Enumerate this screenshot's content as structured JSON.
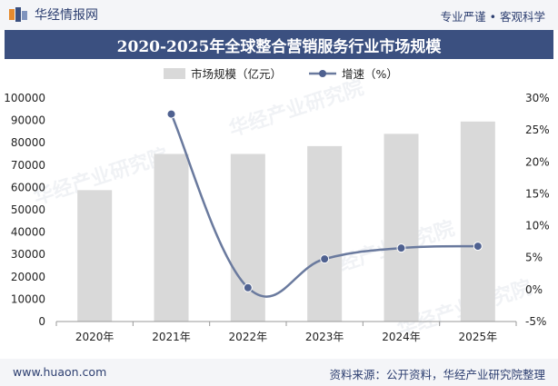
{
  "header": {
    "brand_name": "华经情报网",
    "slogan": "专业严谨 • 客观科学"
  },
  "title": "2020-2025年全球整合营销服务行业市场规模",
  "footer": {
    "website": "www.huaon.com",
    "source": "资料来源：公开资料，华经产业研究院整理"
  },
  "watermark": "华经产业研究院",
  "colors": {
    "bar": "#d9d9d9",
    "line": "#6a7a9e",
    "marker": "#4f6190",
    "title_bg": "#3b5080"
  },
  "chart_data": {
    "type": "bar+line",
    "categories": [
      "2020年",
      "2021年",
      "2022年",
      "2023年",
      "2024年",
      "2025年"
    ],
    "series": [
      {
        "name": "市场规模（亿元）",
        "type": "bar",
        "axis": "left",
        "values": [
          58800,
          75000,
          75000,
          78500,
          84000,
          89500
        ]
      },
      {
        "name": "增速（%）",
        "type": "line",
        "axis": "right",
        "values": [
          null,
          27.5,
          0.3,
          4.8,
          6.5,
          6.8
        ]
      }
    ],
    "y_left": {
      "min": 0,
      "max": 100000,
      "ticks": [
        "0",
        "10000",
        "20000",
        "30000",
        "40000",
        "50000",
        "60000",
        "70000",
        "80000",
        "90000",
        "100000"
      ]
    },
    "y_right": {
      "min": -5,
      "max": 30,
      "ticks": [
        "-5%",
        "0%",
        "5%",
        "10%",
        "15%",
        "20%",
        "25%",
        "30%"
      ]
    },
    "legend_position": "top",
    "grid": false
  }
}
